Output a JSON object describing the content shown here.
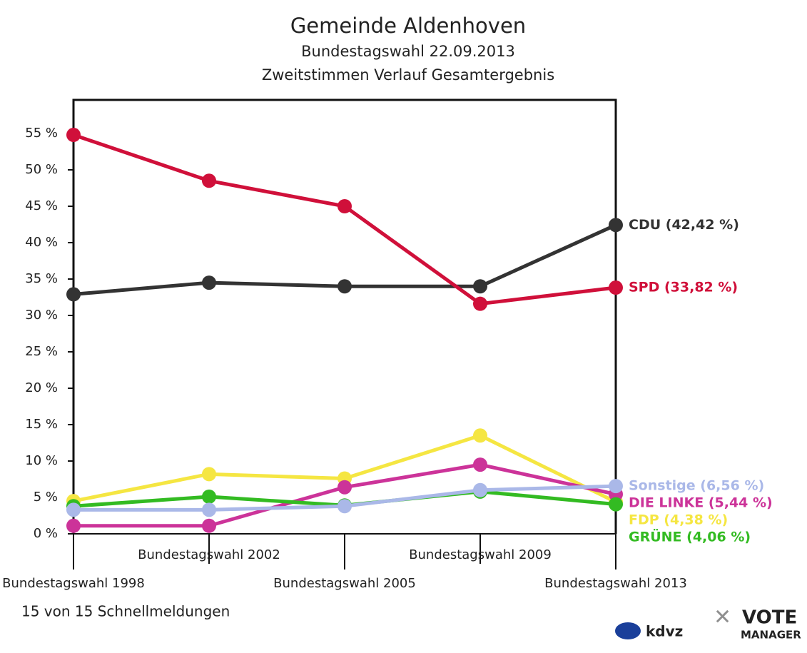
{
  "chart_data": {
    "type": "line",
    "title": "Gemeinde Aldenhoven",
    "subtitle": "Bundestagswahl 22.09.2013",
    "subtitle2": "Zweitstimmen Verlauf Gesamtergebnis",
    "categories": [
      "Bundestagswahl 1998",
      "Bundestagswahl 2002",
      "Bundestagswahl 2005",
      "Bundestagswahl 2009",
      "Bundestagswahl 2013"
    ],
    "series": [
      {
        "name": "CDU (42,42 %)",
        "color": "#333333",
        "values": [
          32.9,
          34.5,
          34.0,
          34.0,
          42.42
        ]
      },
      {
        "name": "SPD (33,82 %)",
        "color": "#d0103a",
        "values": [
          54.8,
          48.5,
          45.0,
          31.6,
          33.82
        ]
      },
      {
        "name": "FDP (4,38 %)",
        "color": "#f5e642",
        "values": [
          4.5,
          8.2,
          7.6,
          13.5,
          4.38
        ]
      },
      {
        "name": "DIE LINKE (5,44 %)",
        "color": "#cc3399",
        "values": [
          1.1,
          1.1,
          6.4,
          9.5,
          5.44
        ]
      },
      {
        "name": "GRÜNE (4,06 %)",
        "color": "#33bb22",
        "values": [
          3.8,
          5.1,
          3.9,
          5.8,
          4.06
        ]
      },
      {
        "name": "Sonstige (6,56 %)",
        "color": "#aab8e8",
        "values": [
          3.3,
          3.3,
          3.8,
          6.0,
          6.56
        ]
      }
    ],
    "ylim": [
      0,
      60
    ],
    "yticks": [
      {
        "value": 0,
        "label": "0 %"
      },
      {
        "value": 5,
        "label": "5 %"
      },
      {
        "value": 10,
        "label": "10 %"
      },
      {
        "value": 15,
        "label": "15 %"
      },
      {
        "value": 20,
        "label": "20 %"
      },
      {
        "value": 25,
        "label": "25 %"
      },
      {
        "value": 30,
        "label": "30 %"
      },
      {
        "value": 35,
        "label": "35 %"
      },
      {
        "value": 40,
        "label": "40 %"
      },
      {
        "value": 45,
        "label": "45 %"
      },
      {
        "value": 50,
        "label": "50 %"
      },
      {
        "value": 55,
        "label": "55 %"
      }
    ],
    "note": "15 von 15 Schnellmeldungen"
  },
  "logos": [
    "kdvz",
    "VOTE",
    "MANAGER"
  ]
}
